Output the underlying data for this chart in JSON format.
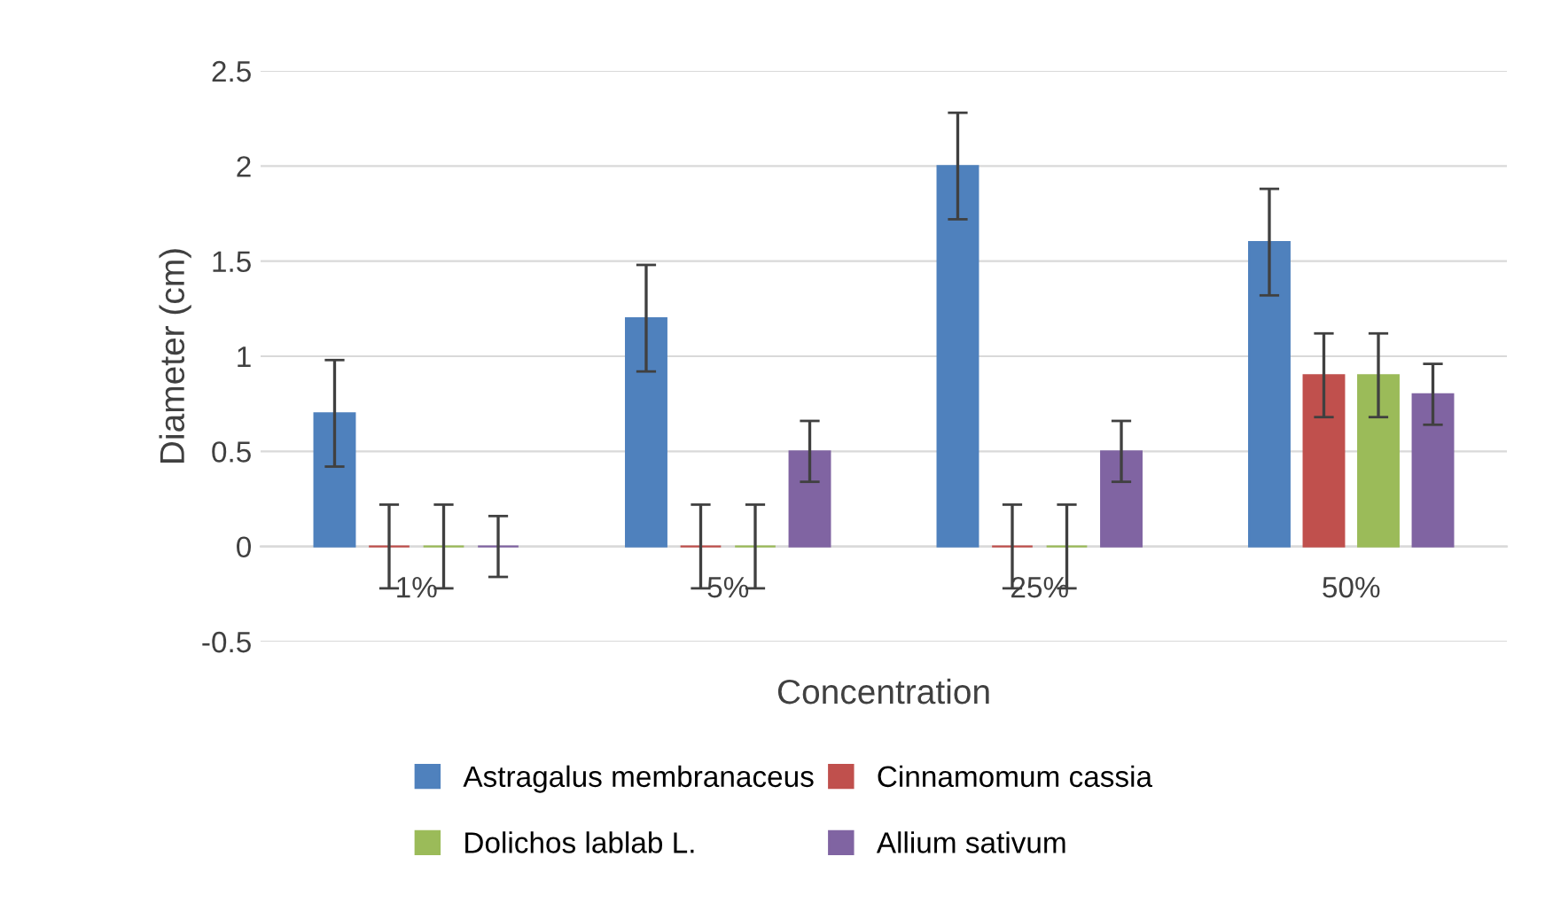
{
  "chart_data": {
    "type": "bar",
    "xlabel": "Concentration",
    "ylabel": "Diameter (cm)",
    "categories": [
      "1%",
      "5%",
      "25%",
      "50%"
    ],
    "series": [
      {
        "name": "Astragalus membranaceus",
        "color": "#4f81bd",
        "values": [
          0.7,
          1.2,
          2.0,
          1.6
        ],
        "errors": [
          0.28,
          0.28,
          0.28,
          0.28
        ]
      },
      {
        "name": "Cinnamomum cassia",
        "color": "#c0504d",
        "values": [
          0,
          0,
          0,
          0.9
        ],
        "errors": [
          0.22,
          0.22,
          0.22,
          0.22
        ]
      },
      {
        "name": "Dolichos lablab L.",
        "color": "#9bbb59",
        "values": [
          0,
          0,
          0,
          0.9
        ],
        "errors": [
          0.22,
          0.22,
          0.22,
          0.22
        ]
      },
      {
        "name": "Allium sativum",
        "color": "#8064a2",
        "values": [
          0,
          0.5,
          0.5,
          0.8
        ],
        "errors": [
          0.16,
          0.16,
          0.16,
          0.16
        ]
      }
    ],
    "ylim": [
      -0.5,
      2.5
    ],
    "yticks": [
      -0.5,
      0,
      0.5,
      1,
      1.5,
      2,
      2.5
    ],
    "grid": "y",
    "legend": "bottom"
  }
}
